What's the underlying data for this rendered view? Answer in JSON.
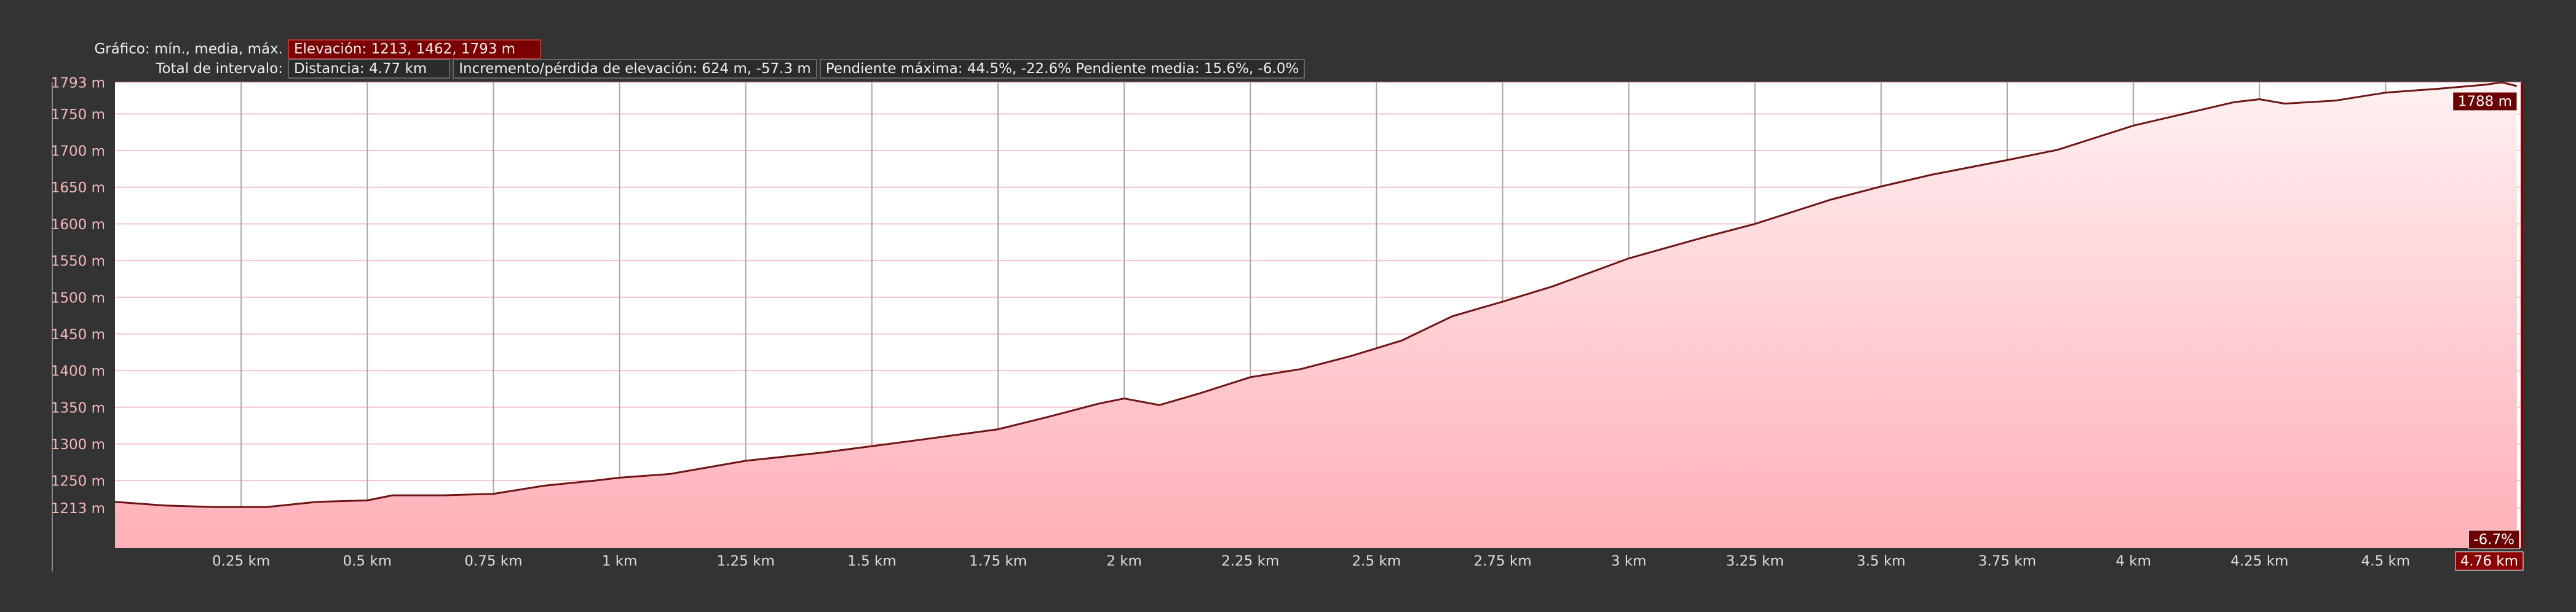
{
  "header": {
    "graph_label": "Gráfico: mín., media, máx.",
    "elevation": "Elevación: 1213, 1462, 1793 m",
    "interval_label": "Total de intervalo:",
    "distance": "Distancia: 4.77 km",
    "gain_loss": "Incremento/pérdida de elevación: 624 m, -57.3 m",
    "slope": "Pendiente máxima: 44.5%, -22.6% Pendiente media: 15.6%, -6.0%"
  },
  "chart_data": {
    "type": "area",
    "x": [
      0,
      0.1,
      0.2,
      0.3,
      0.4,
      0.5,
      0.55,
      0.65,
      0.75,
      0.85,
      0.95,
      1.0,
      1.1,
      1.25,
      1.4,
      1.5,
      1.6,
      1.75,
      1.85,
      1.95,
      2.0,
      2.07,
      2.15,
      2.25,
      2.35,
      2.45,
      2.55,
      2.65,
      2.75,
      2.85,
      3.0,
      3.15,
      3.25,
      3.4,
      3.5,
      3.6,
      3.75,
      3.85,
      4.0,
      4.1,
      4.2,
      4.25,
      4.3,
      4.4,
      4.5,
      4.6,
      4.7,
      4.73,
      4.76
    ],
    "values": [
      1221,
      1216,
      1214,
      1214,
      1221,
      1223,
      1230,
      1230,
      1232,
      1243,
      1250,
      1254,
      1259,
      1277,
      1288,
      1297,
      1306,
      1320,
      1337,
      1355,
      1362,
      1353,
      1369,
      1391,
      1402,
      1420,
      1441,
      1474,
      1494,
      1515,
      1553,
      1582,
      1600,
      1633,
      1651,
      1667,
      1687,
      1701,
      1734,
      1750,
      1766,
      1770,
      1764,
      1768,
      1779,
      1784,
      1790,
      1793,
      1788
    ],
    "xlim": [
      0,
      4.77
    ],
    "ylim": [
      1158,
      1793
    ],
    "xticks": [
      {
        "value": 0.25,
        "label": "0.25 km"
      },
      {
        "value": 0.5,
        "label": "0.5 km"
      },
      {
        "value": 0.75,
        "label": "0.75 km"
      },
      {
        "value": 1,
        "label": "1 km"
      },
      {
        "value": 1.25,
        "label": "1.25 km"
      },
      {
        "value": 1.5,
        "label": "1.5 km"
      },
      {
        "value": 1.75,
        "label": "1.75 km"
      },
      {
        "value": 2,
        "label": "2 km"
      },
      {
        "value": 2.25,
        "label": "2.25 km"
      },
      {
        "value": 2.5,
        "label": "2.5 km"
      },
      {
        "value": 2.75,
        "label": "2.75 km"
      },
      {
        "value": 3,
        "label": "3 km"
      },
      {
        "value": 3.25,
        "label": "3.25 km"
      },
      {
        "value": 3.5,
        "label": "3.5 km"
      },
      {
        "value": 3.75,
        "label": "3.75 km"
      },
      {
        "value": 4,
        "label": "4 km"
      },
      {
        "value": 4.25,
        "label": "4.25 km"
      },
      {
        "value": 4.5,
        "label": "4.5 km"
      }
    ],
    "yticks": [
      {
        "value": 1213,
        "label": "1213 m"
      },
      {
        "value": 1250,
        "label": "1250 m"
      },
      {
        "value": 1300,
        "label": "1300 m"
      },
      {
        "value": 1350,
        "label": "1350 m"
      },
      {
        "value": 1400,
        "label": "1400 m"
      },
      {
        "value": 1450,
        "label": "1450 m"
      },
      {
        "value": 1500,
        "label": "1500 m"
      },
      {
        "value": 1550,
        "label": "1550 m"
      },
      {
        "value": 1600,
        "label": "1600 m"
      },
      {
        "value": 1650,
        "label": "1650 m"
      },
      {
        "value": 1700,
        "label": "1700 m"
      },
      {
        "value": 1750,
        "label": "1750 m"
      },
      {
        "value": 1793,
        "label": "1793 m"
      }
    ],
    "color": "#6e1414",
    "grid": true,
    "annotations": {
      "current_elevation": "1788 m",
      "current_slope": "-6.7%",
      "current_distance": "4.76 km"
    }
  }
}
